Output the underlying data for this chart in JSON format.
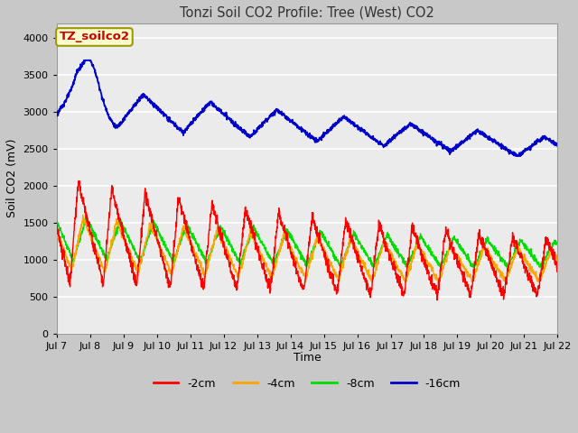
{
  "title": "Tonzi Soil CO2 Profile: Tree (West) CO2",
  "ylabel": "Soil CO2 (mV)",
  "xlabel": "Time",
  "legend_label": "TZ_soilco2",
  "ylim": [
    0,
    4200
  ],
  "yticks": [
    0,
    500,
    1000,
    1500,
    2000,
    2500,
    3000,
    3500,
    4000
  ],
  "xtick_labels": [
    "Jul 7",
    "Jul 8",
    "Jul 9",
    "Jul 10",
    "Jul 11",
    "Jul 12",
    "Jul 13",
    "Jul 14",
    "Jul 15",
    "Jul 16",
    "Jul 17",
    "Jul 18",
    "Jul 19",
    "Jul 20",
    "Jul 21",
    "Jul 22"
  ],
  "series_colors": {
    "cm2": "#ff0000",
    "cm4": "#ffa500",
    "cm8": "#00dd00",
    "cm16": "#0000cc"
  },
  "series_labels": {
    "cm2": "-2cm",
    "cm4": "-4cm",
    "cm8": "-8cm",
    "cm16": "-16cm"
  },
  "fig_bg_color": "#c8c8c8",
  "plot_bg_color": "#ebebeb",
  "title_color": "#333333",
  "annotation_box_color": "#ffffcc",
  "annotation_text_color": "#cc0000",
  "annotation_border_color": "#999900",
  "grid_color": "#ffffff",
  "figsize": [
    6.4,
    4.8
  ],
  "dpi": 100
}
